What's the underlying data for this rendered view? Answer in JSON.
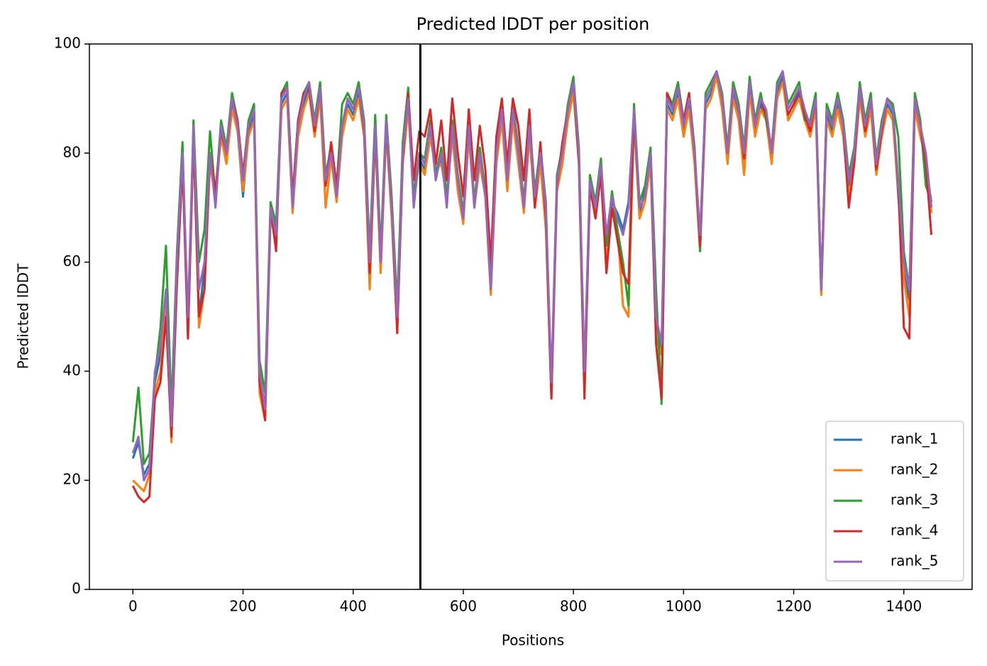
{
  "chart_data": {
    "type": "line",
    "title": "Predicted lDDT per position",
    "xlabel": "Positions",
    "ylabel": "Predicted lDDT",
    "xlim": [
      -79,
      1524
    ],
    "ylim": [
      0,
      100
    ],
    "xticks": [
      0,
      200,
      400,
      600,
      800,
      1000,
      1200,
      1400
    ],
    "yticks": [
      0,
      20,
      40,
      60,
      80,
      100
    ],
    "legend": "lower right",
    "vline": 522,
    "vline_color": "#000000",
    "x": [
      0,
      10,
      20,
      30,
      40,
      50,
      60,
      70,
      80,
      90,
      100,
      110,
      120,
      130,
      140,
      150,
      160,
      170,
      180,
      190,
      200,
      210,
      220,
      230,
      240,
      250,
      260,
      270,
      280,
      290,
      300,
      310,
      320,
      330,
      340,
      350,
      360,
      370,
      380,
      390,
      400,
      410,
      420,
      430,
      440,
      450,
      460,
      470,
      480,
      490,
      500,
      510,
      520,
      530,
      540,
      550,
      560,
      570,
      580,
      590,
      600,
      610,
      620,
      630,
      640,
      650,
      660,
      670,
      680,
      690,
      700,
      710,
      720,
      730,
      740,
      750,
      760,
      770,
      780,
      790,
      800,
      810,
      820,
      830,
      840,
      850,
      860,
      870,
      880,
      890,
      900,
      910,
      920,
      930,
      940,
      950,
      960,
      970,
      980,
      990,
      1000,
      1010,
      1020,
      1030,
      1040,
      1050,
      1060,
      1070,
      1080,
      1090,
      1100,
      1110,
      1120,
      1130,
      1140,
      1150,
      1160,
      1170,
      1180,
      1190,
      1200,
      1210,
      1220,
      1230,
      1240,
      1250,
      1260,
      1270,
      1280,
      1290,
      1300,
      1310,
      1320,
      1330,
      1340,
      1350,
      1360,
      1370,
      1380,
      1390,
      1400,
      1410,
      1420,
      1430,
      1440,
      1450
    ],
    "series": [
      {
        "name": "rank_1",
        "color": "#1f77b4",
        "values": [
          24,
          27,
          21,
          23,
          38,
          43,
          53,
          31,
          58,
          79,
          48,
          84,
          50,
          59,
          79,
          71,
          84,
          79,
          89,
          84,
          72,
          84,
          87,
          38,
          34,
          69,
          66,
          89,
          91,
          71,
          84,
          89,
          92,
          84,
          91,
          74,
          81,
          73,
          84,
          89,
          87,
          91,
          84,
          58,
          84,
          61,
          85,
          69,
          49,
          79,
          89,
          71,
          79,
          77,
          84,
          76,
          79,
          71,
          84,
          74,
          69,
          84,
          71,
          79,
          73,
          56,
          79,
          87,
          74,
          87,
          79,
          71,
          84,
          73,
          79,
          69,
          36,
          74,
          79,
          87,
          92,
          79,
          38,
          74,
          71,
          77,
          64,
          71,
          69,
          66,
          71,
          87,
          69,
          73,
          79,
          49,
          44,
          89,
          87,
          91,
          84,
          89,
          79,
          63,
          89,
          91,
          94,
          89,
          79,
          91,
          87,
          79,
          92,
          84,
          89,
          86,
          79,
          91,
          94,
          86,
          88,
          91,
          86,
          84,
          89,
          54,
          87,
          84,
          89,
          84,
          74,
          79,
          91,
          84,
          89,
          77,
          84,
          89,
          87,
          72,
          58,
          53,
          89,
          84,
          78,
          71
        ]
      },
      {
        "name": "rank_2",
        "color": "#ff7f0e",
        "values": [
          20,
          19,
          18,
          21,
          36,
          40,
          52,
          27,
          57,
          78,
          46,
          83,
          48,
          55,
          78,
          72,
          83,
          78,
          88,
          84,
          73,
          83,
          86,
          36,
          31,
          68,
          64,
          88,
          90,
          69,
          83,
          88,
          91,
          83,
          90,
          70,
          79,
          71,
          83,
          88,
          86,
          90,
          83,
          55,
          83,
          58,
          84,
          68,
          47,
          78,
          88,
          72,
          78,
          76,
          83,
          77,
          78,
          72,
          83,
          73,
          67,
          83,
          70,
          78,
          72,
          54,
          78,
          86,
          73,
          86,
          78,
          69,
          83,
          70,
          78,
          66,
          35,
          73,
          78,
          86,
          91,
          78,
          36,
          73,
          69,
          76,
          60,
          70,
          66,
          52,
          50,
          86,
          68,
          71,
          78,
          46,
          43,
          88,
          86,
          90,
          83,
          88,
          78,
          62,
          88,
          90,
          94,
          88,
          78,
          90,
          86,
          76,
          91,
          83,
          88,
          86,
          78,
          90,
          93,
          86,
          88,
          90,
          86,
          83,
          88,
          54,
          86,
          83,
          88,
          83,
          72,
          78,
          90,
          83,
          88,
          76,
          83,
          88,
          86,
          73,
          57,
          50,
          88,
          83,
          79,
          69
        ]
      },
      {
        "name": "rank_3",
        "color": "#2ca02c",
        "values": [
          27,
          37,
          23,
          25,
          39,
          48,
          63,
          33,
          62,
          82,
          47,
          86,
          60,
          66,
          84,
          72,
          86,
          81,
          91,
          86,
          76,
          86,
          89,
          42,
          36,
          71,
          67,
          91,
          93,
          72,
          86,
          91,
          93,
          86,
          93,
          76,
          81,
          74,
          89,
          91,
          89,
          93,
          86,
          62,
          87,
          62,
          87,
          72,
          52,
          82,
          92,
          72,
          80,
          79,
          86,
          76,
          81,
          72,
          86,
          76,
          69,
          86,
          71,
          81,
          73,
          56,
          81,
          89,
          76,
          89,
          81,
          71,
          86,
          73,
          81,
          71,
          36,
          76,
          81,
          89,
          94,
          81,
          38,
          76,
          71,
          79,
          63,
          73,
          66,
          60,
          52,
          89,
          71,
          74,
          81,
          55,
          34,
          91,
          89,
          93,
          86,
          91,
          81,
          62,
          91,
          93,
          95,
          91,
          81,
          93,
          89,
          81,
          94,
          86,
          91,
          86,
          81,
          93,
          95,
          89,
          91,
          93,
          86,
          86,
          91,
          55,
          89,
          86,
          91,
          86,
          76,
          81,
          93,
          86,
          91,
          79,
          86,
          90,
          89,
          83,
          62,
          55,
          91,
          86,
          74,
          71
        ]
      },
      {
        "name": "rank_4",
        "color": "#d62728",
        "values": [
          19,
          17,
          16,
          17,
          35,
          38,
          50,
          28,
          56,
          78,
          46,
          83,
          50,
          55,
          80,
          73,
          84,
          80,
          90,
          86,
          76,
          85,
          88,
          38,
          31,
          70,
          62,
          91,
          92,
          72,
          86,
          91,
          92,
          84,
          92,
          74,
          82,
          74,
          85,
          90,
          88,
          92,
          84,
          58,
          84,
          60,
          85,
          70,
          47,
          79,
          91,
          75,
          84,
          83,
          88,
          78,
          86,
          75,
          90,
          80,
          72,
          88,
          75,
          85,
          77,
          60,
          83,
          90,
          78,
          90,
          85,
          75,
          88,
          70,
          82,
          68,
          35,
          74,
          82,
          88,
          93,
          78,
          35,
          74,
          68,
          76,
          58,
          70,
          64,
          58,
          56,
          87,
          70,
          72,
          80,
          45,
          35,
          91,
          88,
          92,
          86,
          91,
          80,
          63,
          90,
          92,
          95,
          90,
          80,
          92,
          88,
          79,
          93,
          85,
          90,
          87,
          80,
          92,
          95,
          87,
          89,
          92,
          87,
          84,
          90,
          55,
          88,
          85,
          90,
          85,
          70,
          78,
          92,
          84,
          90,
          77,
          84,
          90,
          88,
          74,
          48,
          46,
          90,
          85,
          78,
          65
        ]
      },
      {
        "name": "rank_5",
        "color": "#9467bd",
        "values": [
          25,
          28,
          20,
          22,
          40,
          45,
          55,
          30,
          60,
          80,
          50,
          85,
          55,
          60,
          80,
          70,
          85,
          80,
          90,
          85,
          75,
          85,
          88,
          40,
          33,
          70,
          65,
          90,
          92,
          70,
          85,
          90,
          93,
          85,
          92,
          75,
          80,
          72,
          85,
          90,
          88,
          92,
          85,
          60,
          85,
          60,
          86,
          70,
          50,
          80,
          90,
          70,
          80,
          78,
          85,
          75,
          80,
          70,
          85,
          75,
          68,
          85,
          70,
          80,
          72,
          55,
          80,
          88,
          75,
          88,
          80,
          70,
          85,
          72,
          80,
          70,
          38,
          75,
          80,
          88,
          93,
          80,
          40,
          75,
          70,
          78,
          65,
          72,
          68,
          65,
          70,
          88,
          70,
          72,
          80,
          50,
          45,
          90,
          88,
          92,
          85,
          90,
          80,
          65,
          90,
          92,
          95,
          90,
          80,
          92,
          88,
          80,
          93,
          85,
          90,
          88,
          80,
          92,
          95,
          88,
          90,
          92,
          88,
          85,
          90,
          55,
          88,
          85,
          90,
          85,
          75,
          80,
          92,
          85,
          90,
          78,
          85,
          90,
          88,
          75,
          60,
          55,
          90,
          85,
          80,
          70
        ]
      }
    ]
  }
}
